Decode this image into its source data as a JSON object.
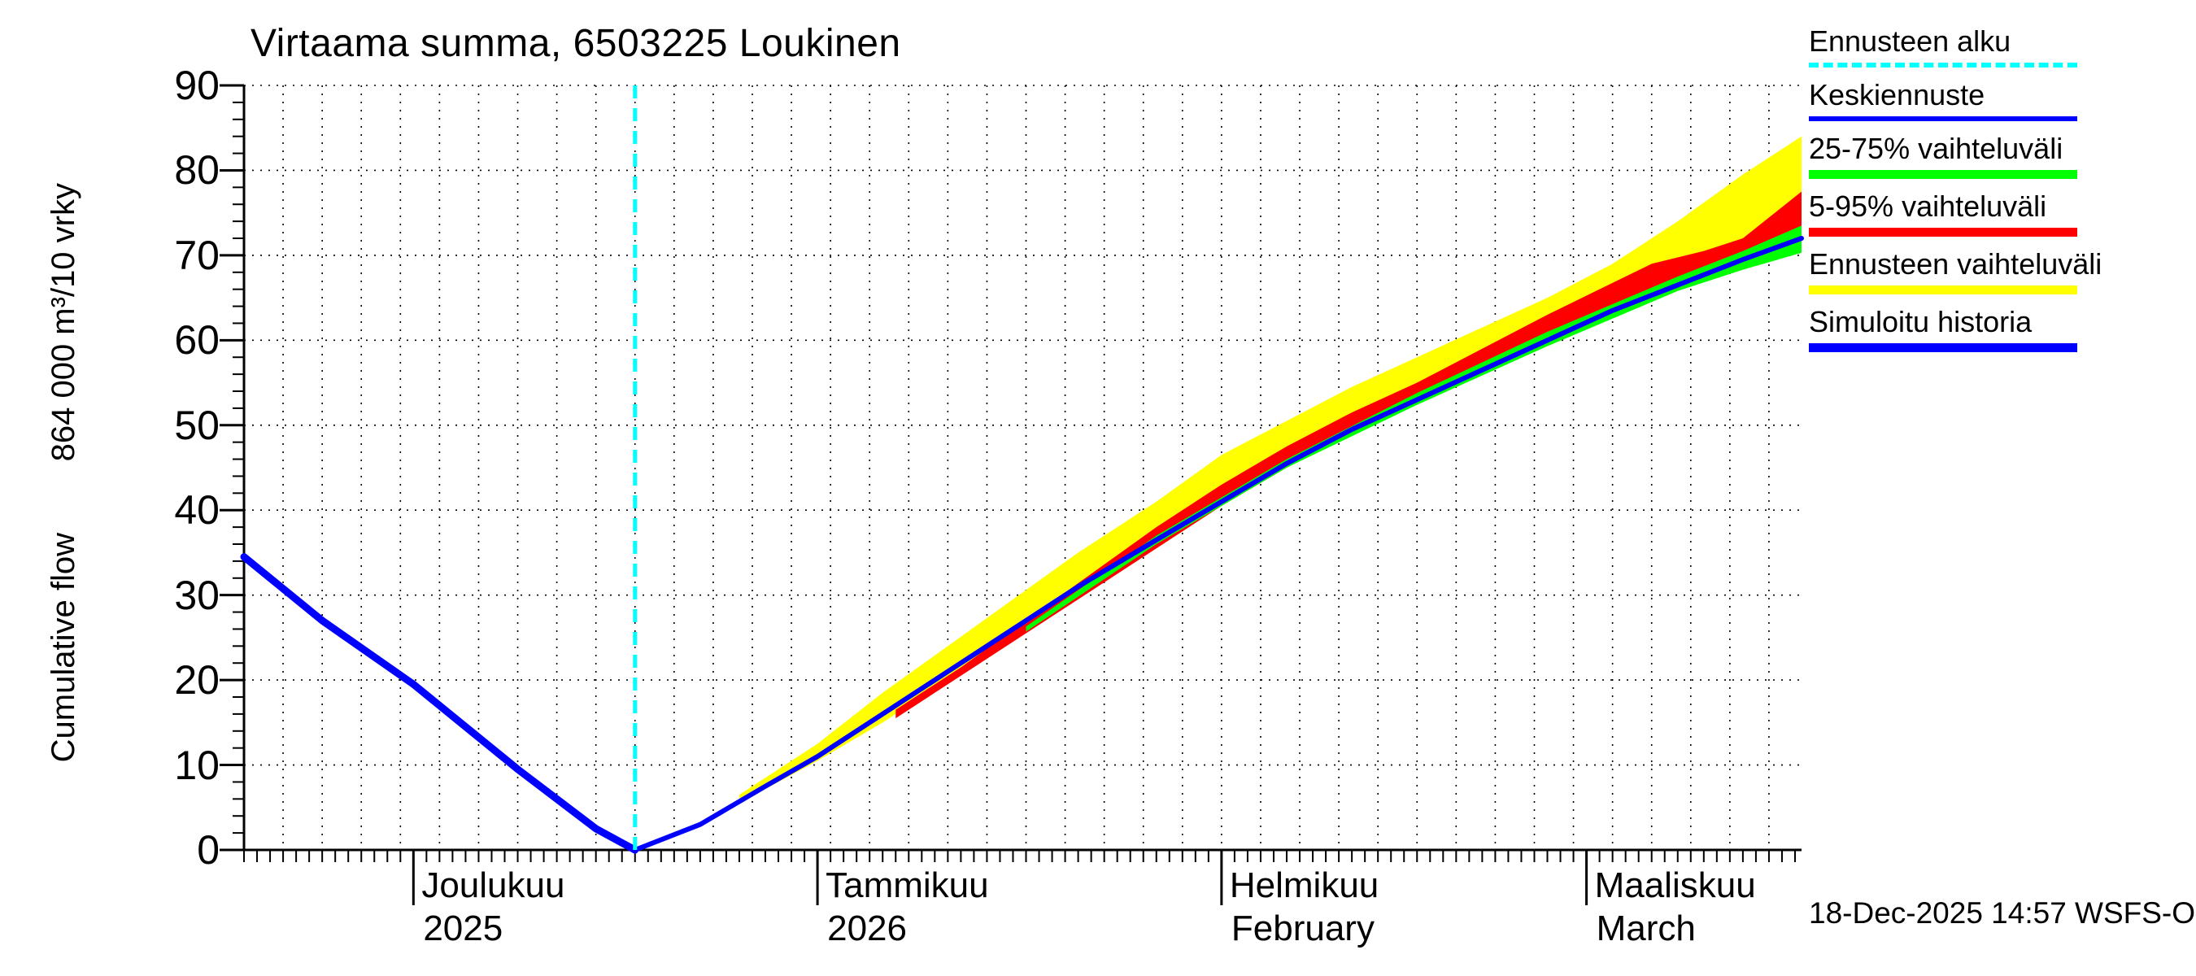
{
  "timestamp": "18-Dec-2025 14:57 WSFS-O",
  "chart_data": {
    "type": "line",
    "title": "Virtaama summa, 6503225 Loukinen",
    "ylabel_unit": "864 000 m³/10 vrky",
    "ylabel_name": "Cumulative flow",
    "ylim": [
      0,
      90
    ],
    "yticks": [
      0,
      10,
      20,
      30,
      40,
      50,
      60,
      70,
      80,
      90
    ],
    "grid": "dotted",
    "legend_position": "top-right",
    "x_axis": {
      "unit": "days_from_forecast_start",
      "domain": [
        -30,
        89.5
      ],
      "forecast_start_day": 0,
      "forecast_start_date": "18-Dec-2025",
      "months": [
        {
          "label": "Joulukuu",
          "sublabel": "2025",
          "start_day": -17
        },
        {
          "label": "Tammikuu",
          "sublabel": "2026",
          "start_day": 14
        },
        {
          "label": "Helmikuu",
          "sublabel": "February",
          "start_day": 45
        },
        {
          "label": "Maaliskuu",
          "sublabel": "March",
          "start_day": 73
        }
      ]
    },
    "legend": [
      {
        "label": "Ennusteen alku",
        "color": "#00ffff",
        "style": "dashed",
        "thickness": 6
      },
      {
        "label": "Keskiennuste",
        "color": "#0000ff",
        "style": "solid",
        "thickness": 6
      },
      {
        "label": "25-75% vaihteluväli",
        "color": "#00ff00",
        "style": "solid",
        "thickness": 11
      },
      {
        "label": "5-95% vaihteluväli",
        "color": "#ff0000",
        "style": "solid",
        "thickness": 11
      },
      {
        "label": "Ennusteen vaihteluväli",
        "color": "#ffff00",
        "style": "solid",
        "thickness": 11
      },
      {
        "label": "Simuloitu historia",
        "color": "#0000ff",
        "style": "solid",
        "thickness": 11
      }
    ],
    "series": [
      {
        "name": "Ennusteen vaihteluväli",
        "type": "band",
        "color": "#ffff00",
        "top": [
          [
            8,
            6.5
          ],
          [
            14,
            12.5
          ],
          [
            19,
            18.5
          ],
          [
            24,
            24
          ],
          [
            29,
            29.5
          ],
          [
            34,
            35
          ],
          [
            40,
            41
          ],
          [
            45,
            46.5
          ],
          [
            50,
            50.5
          ],
          [
            55,
            54.5
          ],
          [
            60,
            58
          ],
          [
            65,
            61.5
          ],
          [
            70,
            65
          ],
          [
            75,
            69
          ],
          [
            80,
            74
          ],
          [
            85,
            79.5
          ],
          [
            89.5,
            84
          ]
        ],
        "bottom": [
          [
            8,
            5.5
          ],
          [
            14,
            10.5
          ],
          [
            19,
            15
          ],
          [
            24,
            20
          ],
          [
            29,
            25
          ],
          [
            34,
            30
          ],
          [
            40,
            35.5
          ],
          [
            45,
            40.5
          ],
          [
            50,
            45
          ],
          [
            55,
            49
          ],
          [
            60,
            52.5
          ],
          [
            65,
            56
          ],
          [
            70,
            59.5
          ],
          [
            75,
            63
          ],
          [
            80,
            66
          ],
          [
            85,
            68.5
          ],
          [
            89.5,
            70.5
          ]
        ]
      },
      {
        "name": "5-95% vaihteluväli",
        "type": "band",
        "color": "#ff0000",
        "top": [
          [
            20,
            16.5
          ],
          [
            25,
            21.5
          ],
          [
            30,
            27
          ],
          [
            35,
            32.5
          ],
          [
            40,
            38
          ],
          [
            45,
            43
          ],
          [
            50,
            47.5
          ],
          [
            55,
            51.5
          ],
          [
            60,
            55
          ],
          [
            65,
            59
          ],
          [
            70,
            63
          ],
          [
            74,
            66
          ],
          [
            78,
            69
          ],
          [
            82,
            70.5
          ],
          [
            85,
            72
          ],
          [
            89.5,
            77.5
          ]
        ],
        "bottom": [
          [
            20,
            15.5
          ],
          [
            25,
            20.5
          ],
          [
            30,
            25.5
          ],
          [
            35,
            30.5
          ],
          [
            40,
            35.5
          ],
          [
            45,
            40.5
          ],
          [
            50,
            45
          ],
          [
            55,
            49
          ],
          [
            60,
            52.5
          ],
          [
            65,
            56
          ],
          [
            70,
            59.5
          ],
          [
            75,
            63
          ],
          [
            80,
            66
          ],
          [
            85,
            68.5
          ],
          [
            89.5,
            70.5
          ]
        ]
      },
      {
        "name": "25-75% vaihteluväli",
        "type": "band",
        "color": "#00ff00",
        "top": [
          [
            30,
            26.3
          ],
          [
            40,
            37
          ],
          [
            50,
            46
          ],
          [
            60,
            53.8
          ],
          [
            70,
            61
          ],
          [
            80,
            67.5
          ],
          [
            85,
            70.5
          ],
          [
            89.5,
            73.5
          ]
        ],
        "bottom": [
          [
            30,
            25.7
          ],
          [
            40,
            36
          ],
          [
            50,
            45
          ],
          [
            60,
            52.4
          ],
          [
            70,
            59.3
          ],
          [
            80,
            65.8
          ],
          [
            85,
            68.3
          ],
          [
            89.5,
            70.3
          ]
        ]
      },
      {
        "name": "Keskiennuste",
        "type": "line",
        "color": "#0000ff",
        "width": 6,
        "points": [
          [
            0,
            0
          ],
          [
            5,
            3
          ],
          [
            10,
            7.5
          ],
          [
            14,
            11
          ],
          [
            19,
            16
          ],
          [
            24,
            21
          ],
          [
            29,
            26
          ],
          [
            34,
            31
          ],
          [
            40,
            36.5
          ],
          [
            45,
            41
          ],
          [
            50,
            45.5
          ],
          [
            55,
            49.5
          ],
          [
            60,
            53
          ],
          [
            65,
            56.5
          ],
          [
            70,
            60
          ],
          [
            75,
            63.5
          ],
          [
            80,
            66.5
          ],
          [
            85,
            69.5
          ],
          [
            89.5,
            72
          ]
        ]
      },
      {
        "name": "Simuloitu historia",
        "type": "line",
        "color": "#0000ff",
        "width": 9,
        "points": [
          [
            -30,
            34.5
          ],
          [
            -24,
            27
          ],
          [
            -17,
            19.5
          ],
          [
            -9,
            9.5
          ],
          [
            -3,
            2.5
          ],
          [
            0,
            0
          ]
        ]
      },
      {
        "name": "Ennusteen alku",
        "type": "vline",
        "color": "#00ffff",
        "width": 5,
        "x": 0,
        "dash": "16 12"
      }
    ]
  }
}
